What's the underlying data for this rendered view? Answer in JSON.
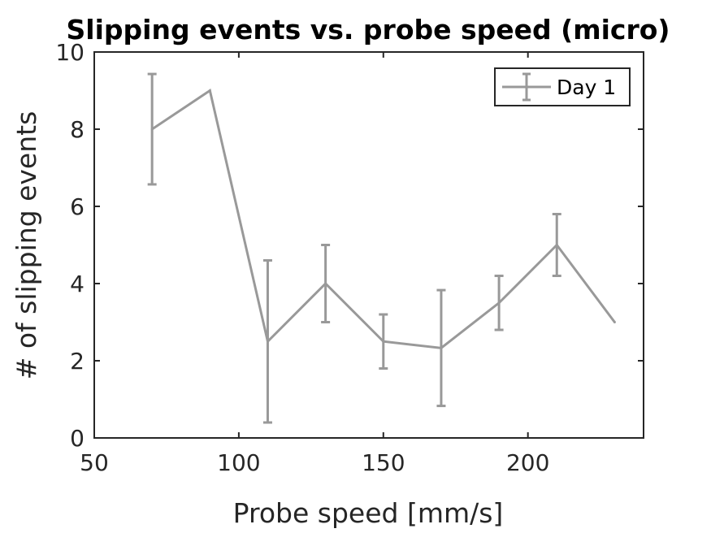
{
  "chart_data": {
    "type": "line",
    "title": "Slipping events vs. probe speed (micro)",
    "xlabel": "Probe speed [mm/s]",
    "ylabel": "# of slipping events",
    "xlim": [
      50,
      240
    ],
    "ylim": [
      0,
      10
    ],
    "xticks": [
      50,
      100,
      150,
      200
    ],
    "yticks": [
      0,
      2,
      4,
      6,
      8,
      10
    ],
    "grid": false,
    "legend_position": "top-right",
    "series": [
      {
        "name": "Day 1",
        "color": "#999999",
        "x": [
          70,
          90,
          110,
          130,
          150,
          170,
          190,
          210,
          230
        ],
        "y": [
          8.0,
          9.0,
          2.5,
          4.0,
          2.5,
          2.33,
          3.5,
          5.0,
          3.0
        ],
        "error": [
          1.43,
          0,
          2.1,
          1.0,
          0.7,
          1.5,
          0.7,
          0.8,
          0
        ]
      }
    ]
  }
}
